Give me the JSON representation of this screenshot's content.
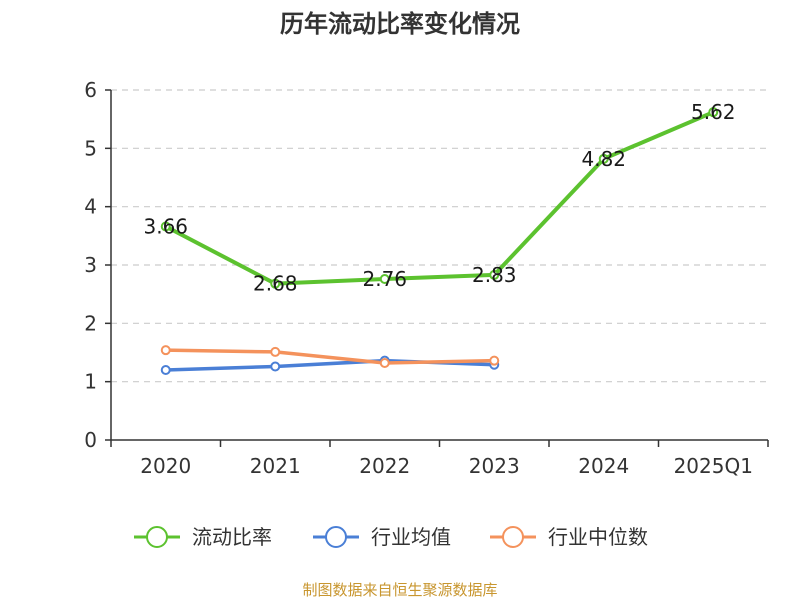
{
  "chart_data": {
    "type": "line",
    "title": "历年流动比率变化情况",
    "categories": [
      "2020",
      "2021",
      "2022",
      "2023",
      "2024",
      "2025Q1"
    ],
    "ylim": [
      0,
      6
    ],
    "yticks": [
      "0",
      "1",
      "2",
      "3",
      "4",
      "5",
      "6"
    ],
    "grid": true,
    "legend_position": "bottom",
    "series": [
      {
        "name": "流动比率",
        "color": "#5cc22f",
        "values": [
          3.66,
          2.68,
          2.76,
          2.83,
          4.82,
          5.62
        ],
        "labels": [
          "3.66",
          "2.68",
          "2.76",
          "2.83",
          "4.82",
          "5.62"
        ]
      },
      {
        "name": "行业均值",
        "color": "#4a7fd6",
        "values": [
          1.2,
          1.26,
          1.36,
          1.29,
          null,
          null
        ]
      },
      {
        "name": "行业中位数",
        "color": "#f4925c",
        "values": [
          1.54,
          1.51,
          1.32,
          1.36,
          null,
          null
        ]
      }
    ],
    "source": "制图数据来自恒生聚源数据库"
  }
}
